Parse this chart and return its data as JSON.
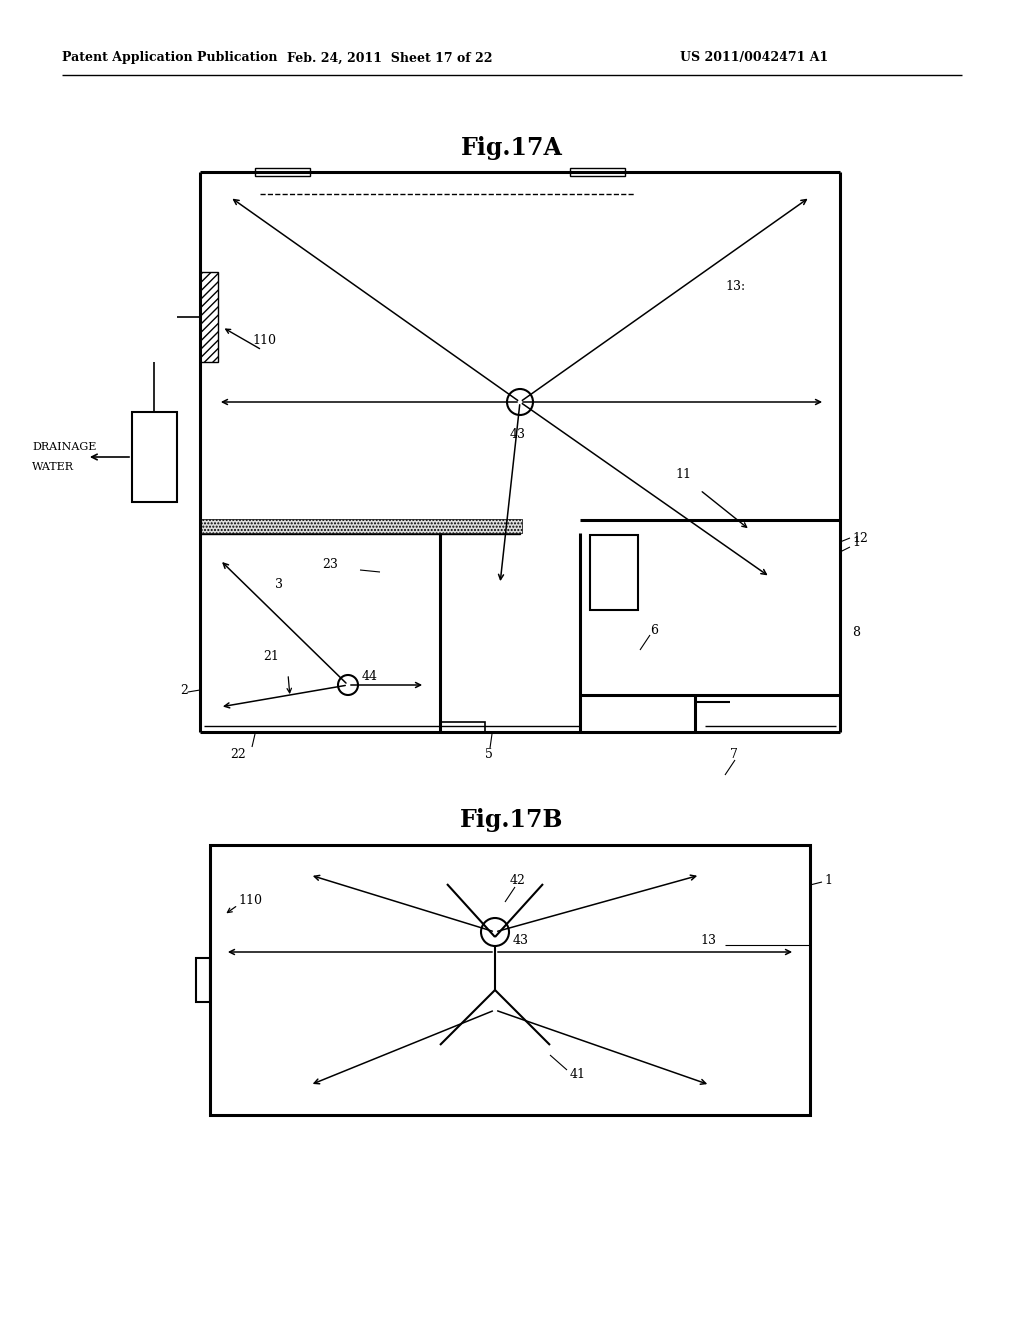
{
  "bg_color": "#ffffff",
  "header_left": "Patent Application Publication",
  "header_mid": "Feb. 24, 2011  Sheet 17 of 22",
  "header_right": "US 2011/0042471 A1",
  "fig17A_title": "Fig.17A",
  "fig17B_title": "Fig.17B"
}
